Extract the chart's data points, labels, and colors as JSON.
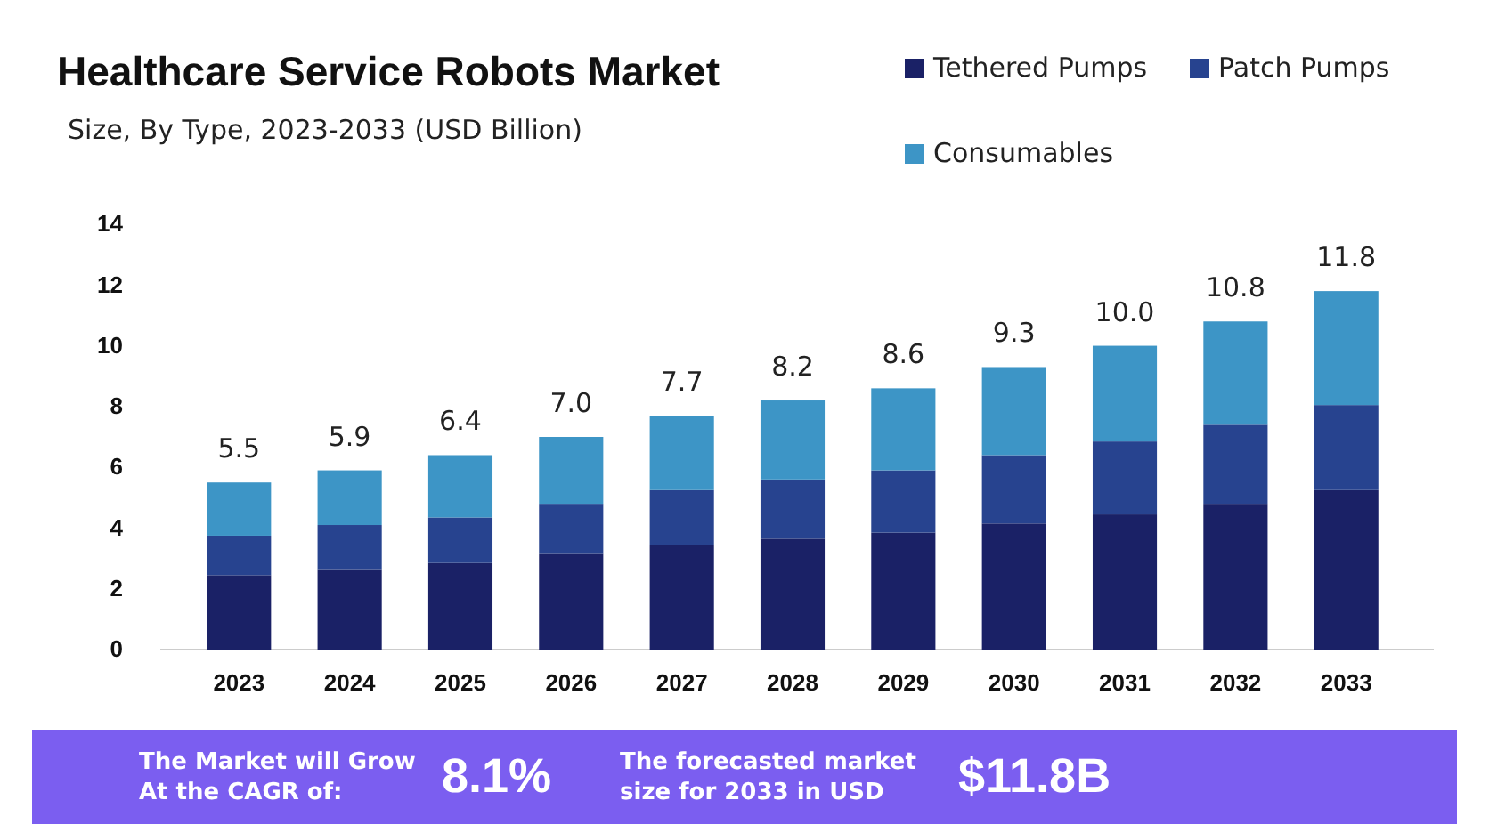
{
  "chart_data": {
    "type": "bar",
    "title": "Healthcare Service Robots Market",
    "subtitle": "Size, By Type, 2023-2033 (USD Billion)",
    "categories": [
      "2023",
      "2024",
      "2025",
      "2026",
      "2027",
      "2028",
      "2029",
      "2030",
      "2031",
      "2032",
      "2033"
    ],
    "series": [
      {
        "name": "Tethered Pumps",
        "color": "#1a2166",
        "values": [
          2.45,
          2.65,
          2.85,
          3.15,
          3.45,
          3.65,
          3.85,
          4.15,
          4.45,
          4.8,
          5.25
        ]
      },
      {
        "name": "Patch Pumps",
        "color": "#27438f",
        "values": [
          1.3,
          1.45,
          1.5,
          1.65,
          1.8,
          1.95,
          2.05,
          2.25,
          2.4,
          2.6,
          2.8
        ]
      },
      {
        "name": "Consumables",
        "color": "#3d95c6",
        "values": [
          1.75,
          1.8,
          2.05,
          2.2,
          2.45,
          2.6,
          2.7,
          2.9,
          3.15,
          3.4,
          3.75
        ]
      }
    ],
    "stacked": true,
    "totals": [
      "5.5",
      "5.9",
      "6.4",
      "7.0",
      "7.7",
      "8.2",
      "8.6",
      "9.3",
      "10.0",
      "10.8",
      "11.8"
    ],
    "ylim": [
      0,
      14
    ],
    "yticks": [
      0,
      2,
      4,
      6,
      8,
      10,
      12,
      14
    ],
    "legend": "top right",
    "annotations": [
      "The Market will Grow At the CAGR of:",
      "8.1%",
      "The forecasted market size for 2033 in USD",
      "$11.8B"
    ]
  }
}
